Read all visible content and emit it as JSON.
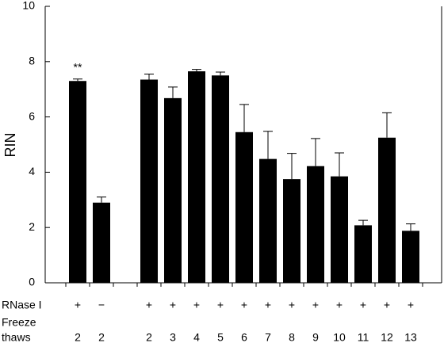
{
  "chart_data": {
    "type": "bar",
    "y_label": "RIN",
    "categories": [
      "2",
      "2",
      null,
      "2",
      "3",
      "4",
      "5",
      "6",
      "7",
      "8",
      "9",
      "10",
      "11",
      "12",
      "13"
    ],
    "rnase_labels": [
      "+",
      "−",
      null,
      "+",
      "+",
      "+",
      "+",
      "+",
      "+",
      "+",
      "+",
      "+",
      "+",
      "+",
      "+"
    ],
    "row_labels": [
      "RNase I",
      "Freeze",
      "thaws"
    ],
    "values": [
      7.3,
      2.9,
      null,
      7.35,
      6.68,
      7.65,
      7.5,
      5.45,
      4.48,
      3.75,
      4.22,
      3.85,
      2.08,
      5.25,
      1.88
    ],
    "errors": [
      0.07,
      0.2,
      null,
      0.2,
      0.4,
      0.07,
      0.12,
      1.0,
      1.0,
      0.93,
      1.0,
      0.85,
      0.18,
      0.9,
      0.25
    ],
    "color": "#000000",
    "annotations": [
      {
        "text": "**"
      }
    ],
    "ylim": [
      0,
      10
    ],
    "yticks": [
      0,
      2,
      4,
      6,
      8,
      10
    ]
  }
}
